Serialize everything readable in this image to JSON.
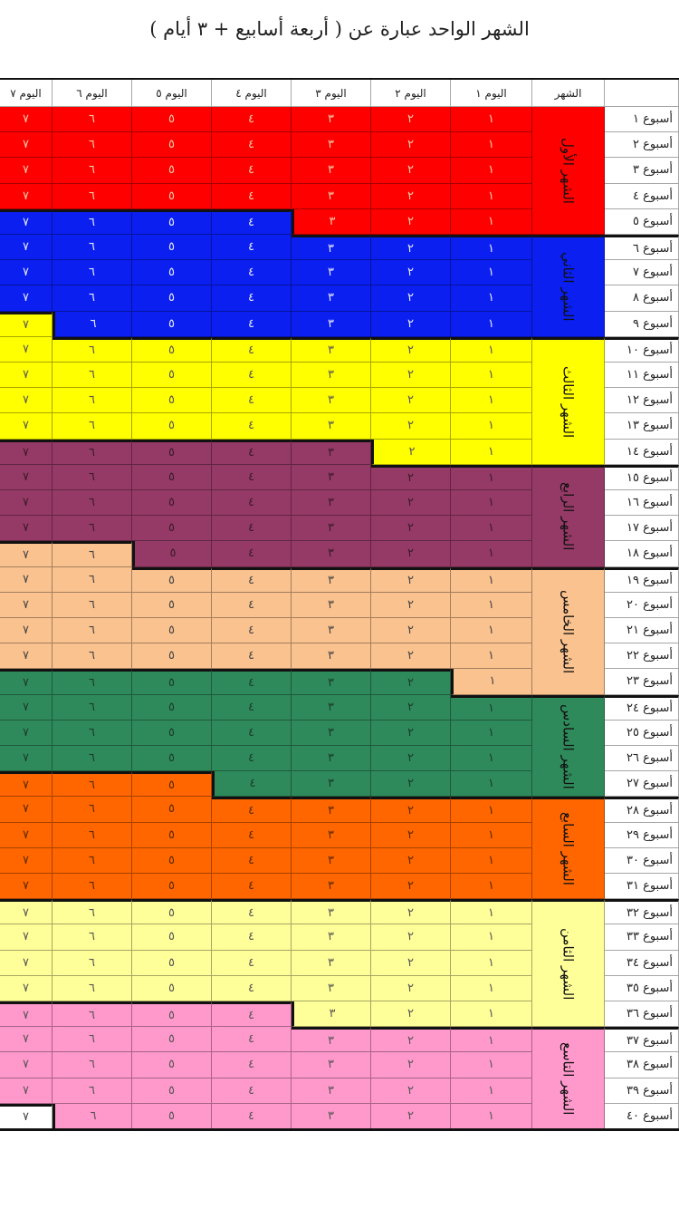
{
  "title": "الشهر الواحد عبارة عن ( أربعة أسابيع + ٣ أيام )",
  "header": {
    "month": "الشهر",
    "days": [
      "اليوم ١",
      "اليوم ٢",
      "اليوم ٣",
      "اليوم ٤",
      "اليوم ٥",
      "اليوم ٦",
      "اليوم ٧"
    ]
  },
  "day_values": [
    "١",
    "٢",
    "٣",
    "٤",
    "٥",
    "٦",
    "٧"
  ],
  "weeks": [
    "أسبوع ١",
    "أسبوع ٢",
    "أسبوع ٣",
    "أسبوع ٤",
    "أسبوع ٥",
    "أسبوع ٦",
    "أسبوع ٧",
    "أسبوع ٨",
    "أسبوع ٩",
    "أسبوع ١٠",
    "أسبوع ١١",
    "أسبوع ١٢",
    "أسبوع ١٣",
    "أسبوع ١٤",
    "أسبوع ١٥",
    "أسبوع ١٦",
    "أسبوع ١٧",
    "أسبوع ١٨",
    "أسبوع ١٩",
    "أسبوع ٢٠",
    "أسبوع ٢١",
    "أسبوع ٢٢",
    "أسبوع ٢٣",
    "أسبوع ٢٤",
    "أسبوع ٢٥",
    "أسبوع ٢٦",
    "أسبوع ٢٧",
    "أسبوع ٢٨",
    "أسبوع ٢٩",
    "أسبوع ٣٠",
    "أسبوع ٣١",
    "أسبوع ٣٢",
    "أسبوع ٣٣",
    "أسبوع ٣٤",
    "أسبوع ٣٥",
    "أسبوع ٣٦",
    "أسبوع ٣٧",
    "أسبوع ٣٨",
    "أسبوع ٣٩",
    "أسبوع ٤٠"
  ],
  "months": [
    {
      "label": "الشهر الأول",
      "color": "#ff0000",
      "text_color": "#f5c9a8"
    },
    {
      "label": "الشهر الثاني",
      "color": "#0a1ff0",
      "text_color": "#e6e9ff"
    },
    {
      "label": "الشهر الثالث",
      "color": "#ffff00",
      "text_color": "#555555"
    },
    {
      "label": "الشهر الرابع",
      "color": "#953a66",
      "text_color": "#3a1a28"
    },
    {
      "label": "الشهر الخامس",
      "color": "#fac28f",
      "text_color": "#444444"
    },
    {
      "label": "الشهر السادس",
      "color": "#2f8a5b",
      "text_color": "#1c3a28"
    },
    {
      "label": "الشهر السابع",
      "color": "#ff6600",
      "text_color": "#5a2a00"
    },
    {
      "label": "الشهر الثامن",
      "color": "#ffff99",
      "text_color": "#555555"
    },
    {
      "label": "الشهر التاسع",
      "color": "#ff99cc",
      "text_color": "#555555"
    }
  ]
}
